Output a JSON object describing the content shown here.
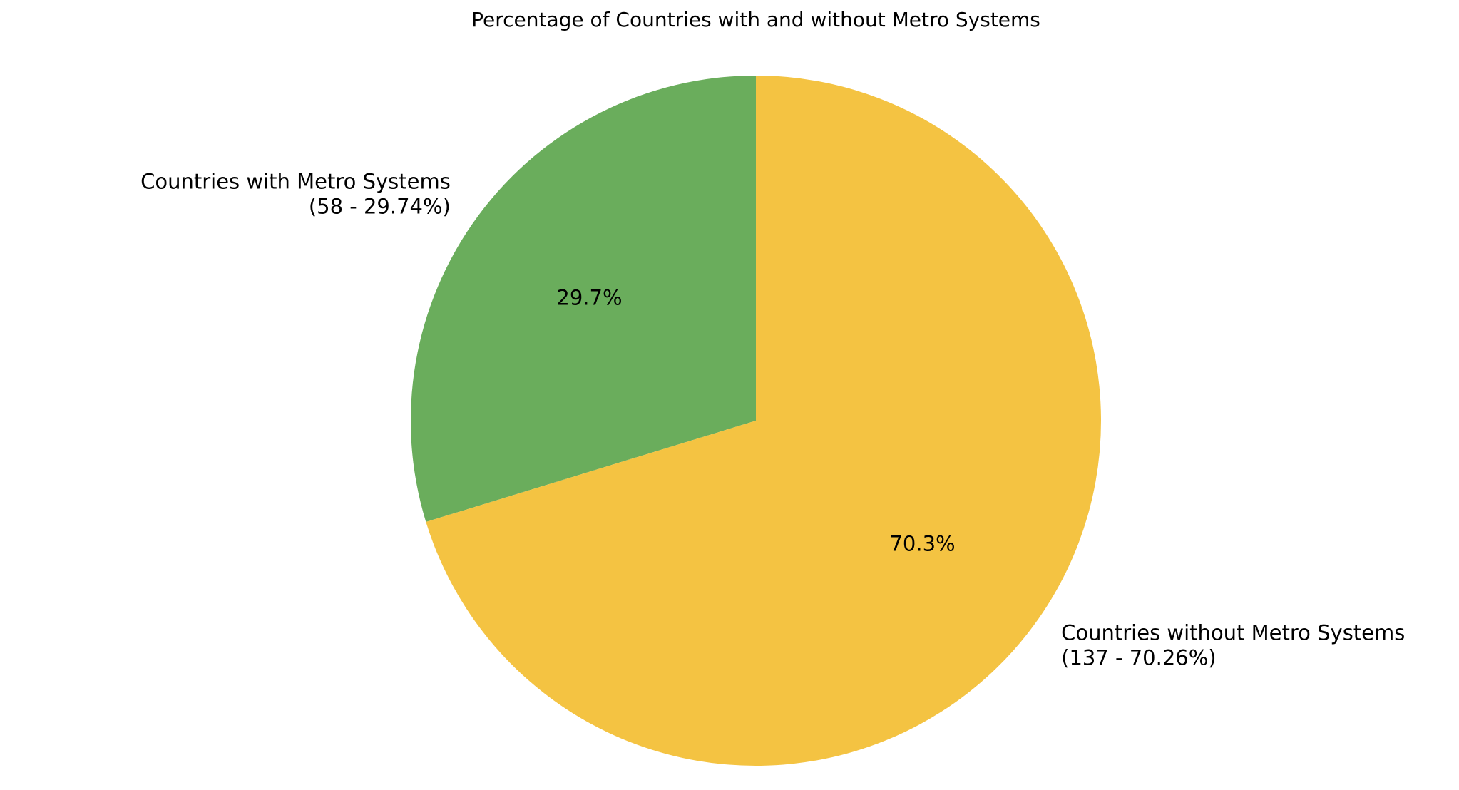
{
  "chart_data": {
    "type": "pie",
    "title": "Percentage of Countries with and without Metro Systems",
    "slices": [
      {
        "label_line1": "Countries with Metro Systems",
        "label_line2": "(58 - 29.74%)",
        "count": 58,
        "value": 29.74,
        "autopct": "29.7%",
        "color": "#6aad5c"
      },
      {
        "label_line1": "Countries without Metro Systems",
        "label_line2": "(137 - 70.26%)",
        "count": 137,
        "value": 70.26,
        "autopct": "70.3%",
        "color": "#f4c342"
      }
    ],
    "start_angle": 90,
    "direction": "counterclockwise",
    "legend": "none"
  }
}
